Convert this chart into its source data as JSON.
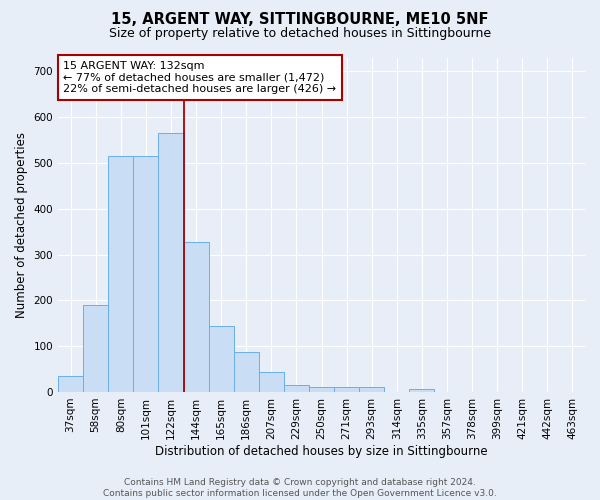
{
  "title": "15, ARGENT WAY, SITTINGBOURNE, ME10 5NF",
  "subtitle": "Size of property relative to detached houses in Sittingbourne",
  "xlabel": "Distribution of detached houses by size in Sittingbourne",
  "ylabel": "Number of detached properties",
  "footer_line1": "Contains HM Land Registry data © Crown copyright and database right 2024.",
  "footer_line2": "Contains public sector information licensed under the Open Government Licence v3.0.",
  "categories": [
    "37sqm",
    "58sqm",
    "80sqm",
    "101sqm",
    "122sqm",
    "144sqm",
    "165sqm",
    "186sqm",
    "207sqm",
    "229sqm",
    "250sqm",
    "271sqm",
    "293sqm",
    "314sqm",
    "335sqm",
    "357sqm",
    "378sqm",
    "399sqm",
    "421sqm",
    "442sqm",
    "463sqm"
  ],
  "values": [
    35,
    190,
    515,
    515,
    565,
    328,
    145,
    88,
    43,
    15,
    10,
    10,
    10,
    0,
    6,
    0,
    0,
    0,
    0,
    0,
    0
  ],
  "bar_color": "#c9ddf5",
  "bar_edge_color": "#6aaee8",
  "vline_x_index": 4.5,
  "vline_color": "#aa0000",
  "annotation_text": "15 ARGENT WAY: 132sqm\n← 77% of detached houses are smaller (1,472)\n22% of semi-detached houses are larger (426) →",
  "annotation_box_color": "white",
  "annotation_box_edge_color": "#aa0000",
  "ylim": [
    0,
    730
  ],
  "yticks": [
    0,
    100,
    200,
    300,
    400,
    500,
    600,
    700
  ],
  "background_color": "#e8eef8",
  "grid_color": "white",
  "title_fontsize": 10.5,
  "subtitle_fontsize": 9,
  "axis_label_fontsize": 8.5,
  "tick_fontsize": 7.5,
  "annotation_fontsize": 8,
  "footer_fontsize": 6.5
}
